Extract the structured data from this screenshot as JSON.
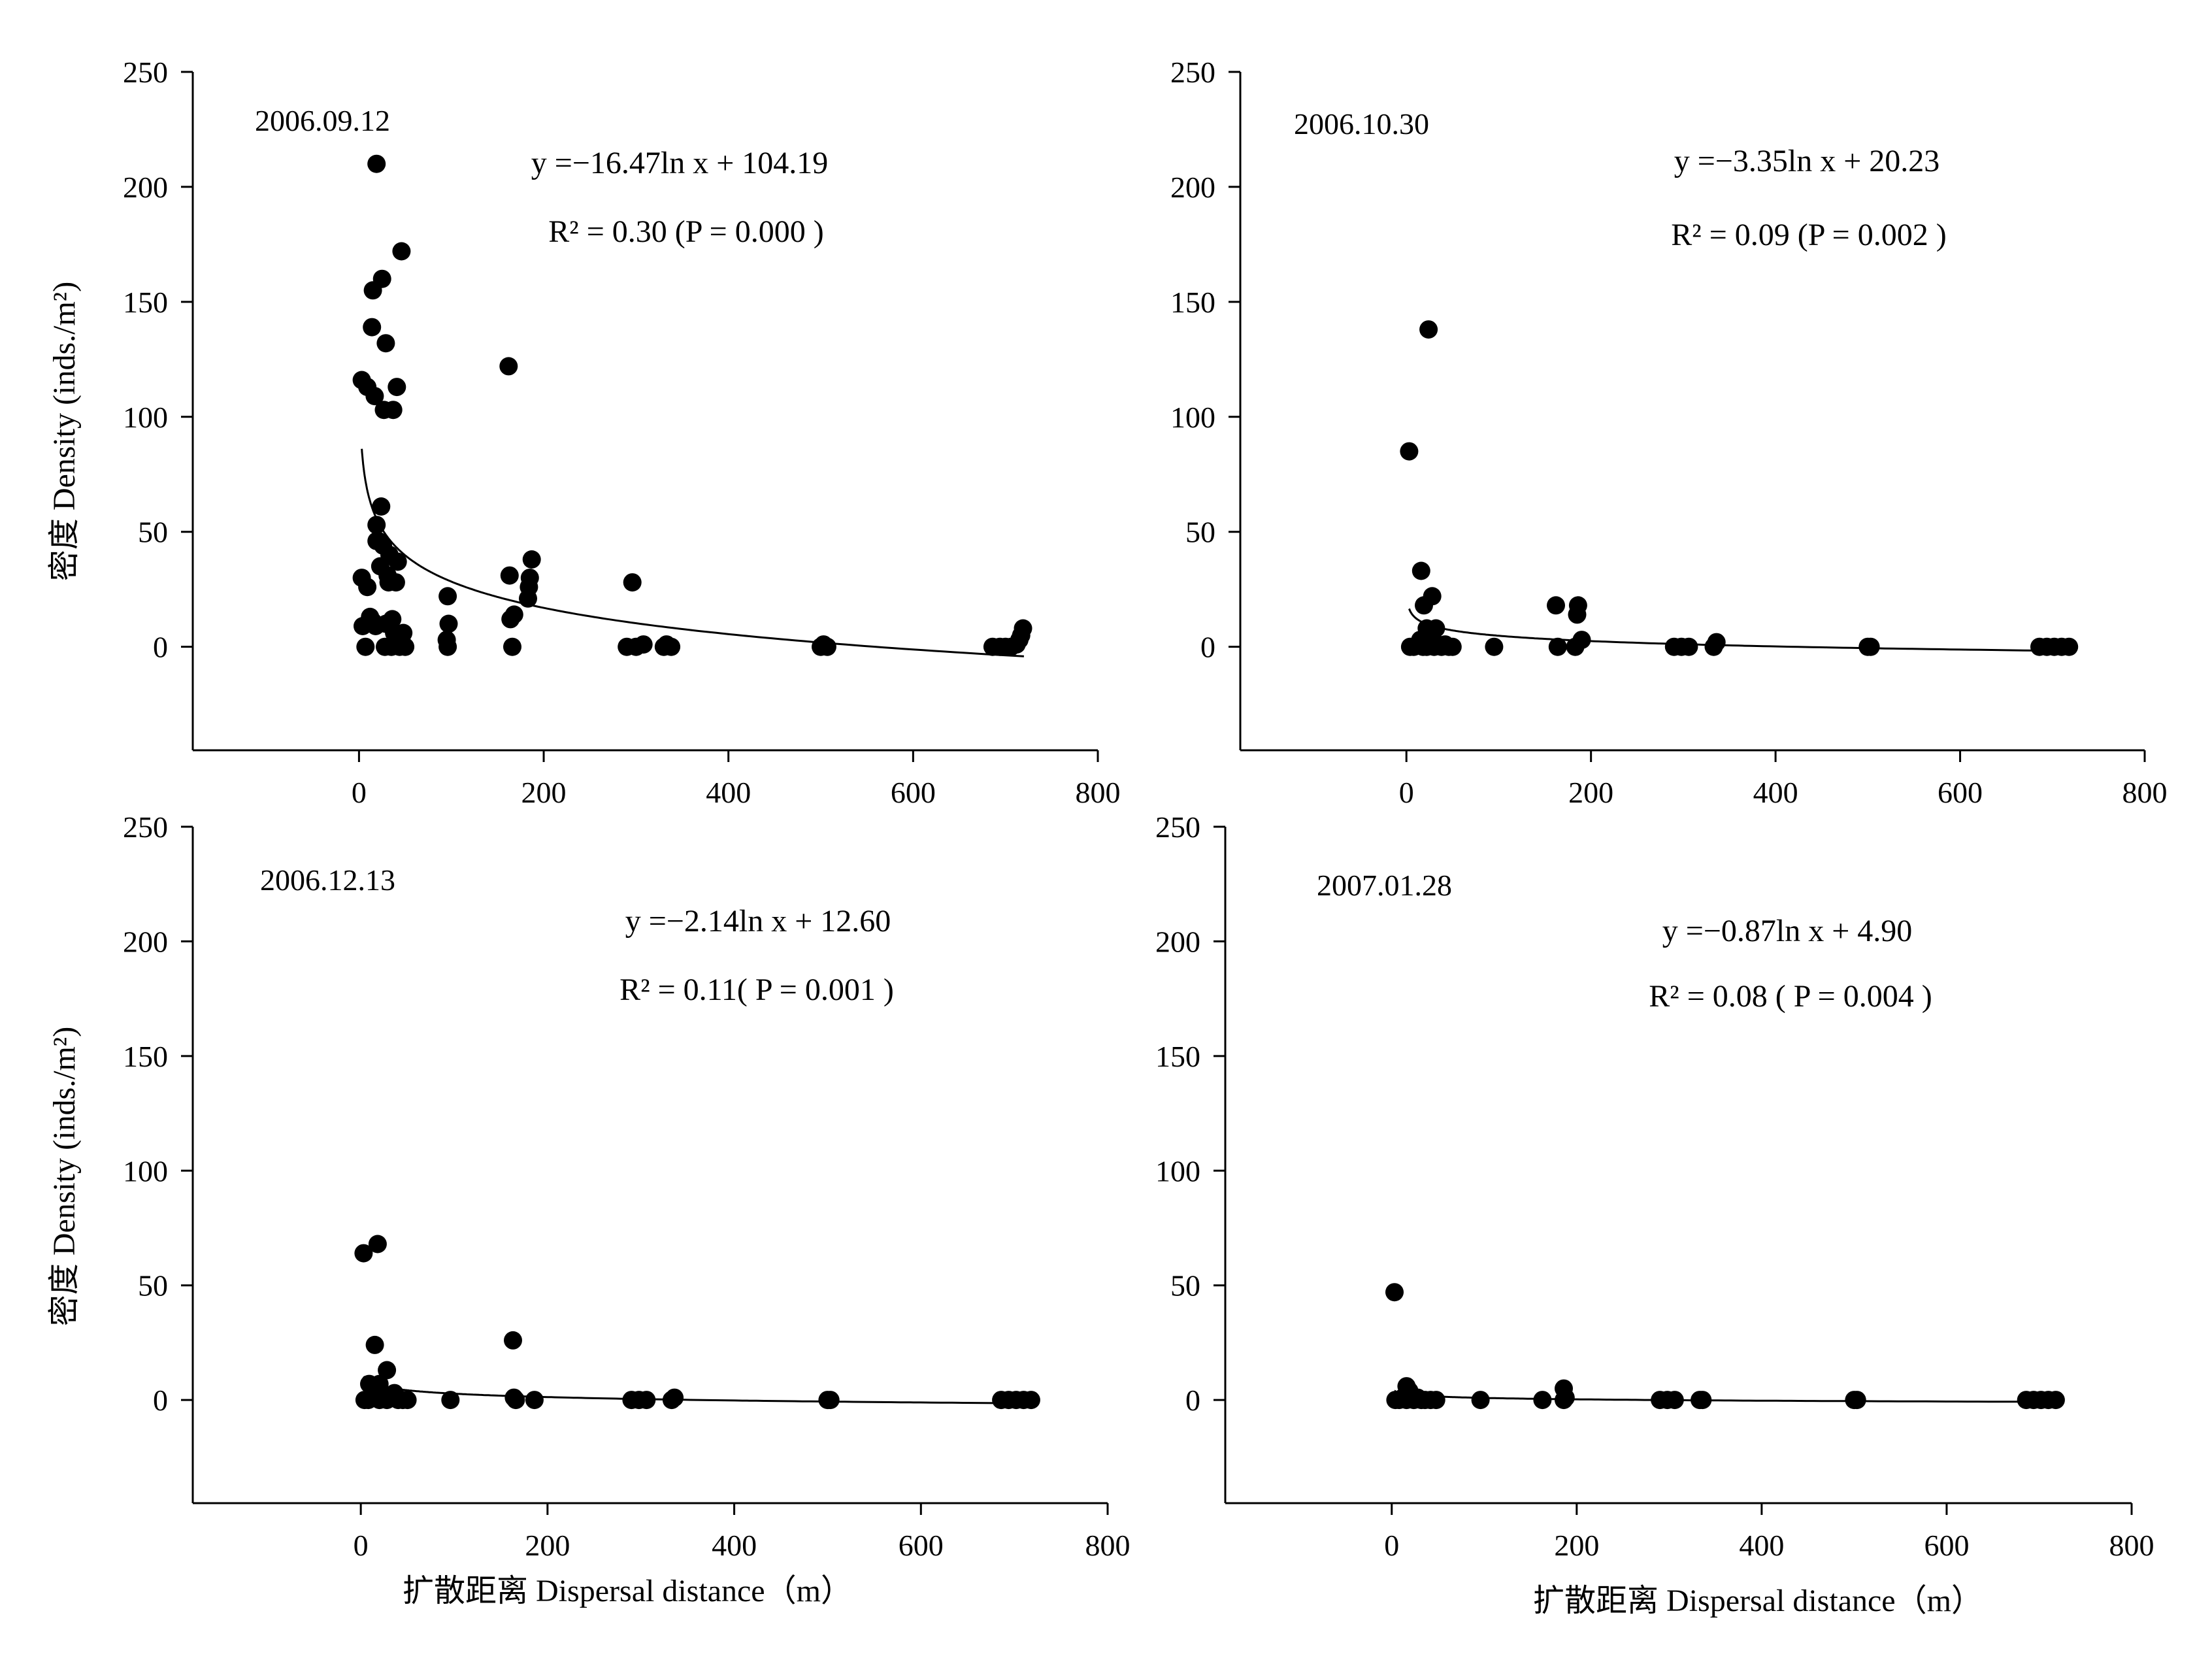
{
  "figure": {
    "y_axis_title": "密度  Density (inds./m²)",
    "x_axis_title": "扩散距离 Dispersal distance（m）"
  },
  "chart_data": [
    {
      "type": "scatter",
      "panel_label": "2006.09.12",
      "equation": "y =−16.47ln x + 104.19",
      "r2_text": "R² = 0.30 (P = 0.000 )",
      "fit": {
        "kind": "log",
        "a": -16.47,
        "b": 104.19
      },
      "xlim": [
        -180,
        800
      ],
      "ylim": [
        -45,
        250
      ],
      "xticks": [
        0,
        200,
        400,
        600,
        800
      ],
      "yticks": [
        0,
        50,
        100,
        150,
        200,
        250
      ],
      "points": [
        [
          3,
          116
        ],
        [
          9,
          113
        ],
        [
          14,
          139
        ],
        [
          15,
          155
        ],
        [
          17,
          109
        ],
        [
          19,
          210
        ],
        [
          25,
          160
        ],
        [
          27,
          103
        ],
        [
          29,
          132
        ],
        [
          37,
          103
        ],
        [
          41,
          113
        ],
        [
          46,
          172
        ],
        [
          3,
          30
        ],
        [
          4,
          9
        ],
        [
          7,
          0
        ],
        [
          9,
          26
        ],
        [
          12,
          13
        ],
        [
          15,
          11
        ],
        [
          18,
          9
        ],
        [
          19,
          53
        ],
        [
          19,
          46
        ],
        [
          21,
          46
        ],
        [
          23,
          35
        ],
        [
          24,
          61
        ],
        [
          26,
          44
        ],
        [
          28,
          0
        ],
        [
          29,
          10
        ],
        [
          31,
          31
        ],
        [
          32,
          28
        ],
        [
          33,
          40
        ],
        [
          35,
          0
        ],
        [
          36,
          12
        ],
        [
          38,
          6
        ],
        [
          40,
          28
        ],
        [
          42,
          37
        ],
        [
          44,
          0
        ],
        [
          46,
          3
        ],
        [
          48,
          6
        ],
        [
          50,
          0
        ],
        [
          96,
          22
        ],
        [
          97,
          10
        ],
        [
          95,
          3
        ],
        [
          96,
          0
        ],
        [
          162,
          122
        ],
        [
          163,
          31
        ],
        [
          164,
          12
        ],
        [
          166,
          0
        ],
        [
          168,
          14
        ],
        [
          187,
          38
        ],
        [
          185,
          30
        ],
        [
          184,
          26
        ],
        [
          183,
          21
        ],
        [
          296,
          28
        ],
        [
          290,
          0
        ],
        [
          300,
          0
        ],
        [
          308,
          1
        ],
        [
          330,
          0
        ],
        [
          333,
          1
        ],
        [
          338,
          0
        ],
        [
          500,
          0
        ],
        [
          503,
          1
        ],
        [
          507,
          0
        ],
        [
          686,
          0
        ],
        [
          694,
          0
        ],
        [
          700,
          0
        ],
        [
          706,
          0
        ],
        [
          712,
          1
        ],
        [
          715,
          3
        ],
        [
          717,
          5
        ],
        [
          719,
          8
        ]
      ]
    },
    {
      "type": "scatter",
      "panel_label": "2006.10.30",
      "equation": "y =−3.35ln x + 20.23",
      "r2_text": "R² = 0.09 (P = 0.002 )",
      "fit": {
        "kind": "log",
        "a": -3.35,
        "b": 20.23
      },
      "xlim": [
        -180,
        800
      ],
      "ylim": [
        -45,
        250
      ],
      "xticks": [
        0,
        200,
        400,
        600,
        800
      ],
      "yticks": [
        0,
        50,
        100,
        150,
        200,
        250
      ],
      "points": [
        [
          3,
          85
        ],
        [
          24,
          138
        ],
        [
          16,
          33
        ],
        [
          19,
          18
        ],
        [
          28,
          22
        ],
        [
          32,
          8
        ],
        [
          22,
          8
        ],
        [
          4,
          0
        ],
        [
          8,
          0
        ],
        [
          12,
          1
        ],
        [
          15,
          3
        ],
        [
          18,
          0
        ],
        [
          22,
          0
        ],
        [
          26,
          2
        ],
        [
          30,
          0
        ],
        [
          34,
          1
        ],
        [
          38,
          0
        ],
        [
          42,
          1
        ],
        [
          46,
          0
        ],
        [
          50,
          0
        ],
        [
          95,
          0
        ],
        [
          162,
          18
        ],
        [
          164,
          0
        ],
        [
          186,
          18
        ],
        [
          185,
          14
        ],
        [
          190,
          3
        ],
        [
          183,
          0
        ],
        [
          290,
          0
        ],
        [
          298,
          0
        ],
        [
          306,
          0
        ],
        [
          333,
          0
        ],
        [
          336,
          2
        ],
        [
          500,
          0
        ],
        [
          503,
          0
        ],
        [
          686,
          0
        ],
        [
          694,
          0
        ],
        [
          702,
          0
        ],
        [
          710,
          0
        ],
        [
          718,
          0
        ]
      ]
    },
    {
      "type": "scatter",
      "panel_label": "2006.12.13",
      "equation": "y =−2.14ln x + 12.60",
      "r2_text": "R² = 0.11( P = 0.001 )",
      "fit": {
        "kind": "log",
        "a": -2.14,
        "b": 12.6
      },
      "xlim": [
        -180,
        800
      ],
      "ylim": [
        -45,
        250
      ],
      "xticks": [
        0,
        200,
        400,
        600,
        800
      ],
      "yticks": [
        0,
        50,
        100,
        150,
        200,
        250
      ],
      "points": [
        [
          3,
          64
        ],
        [
          18,
          68
        ],
        [
          15,
          24
        ],
        [
          28,
          13
        ],
        [
          9,
          7
        ],
        [
          20,
          7
        ],
        [
          4,
          0
        ],
        [
          8,
          0
        ],
        [
          12,
          1
        ],
        [
          16,
          3
        ],
        [
          20,
          0
        ],
        [
          24,
          2
        ],
        [
          28,
          0
        ],
        [
          32,
          1
        ],
        [
          36,
          3
        ],
        [
          40,
          0
        ],
        [
          45,
          0
        ],
        [
          50,
          0
        ],
        [
          96,
          0
        ],
        [
          163,
          26
        ],
        [
          164,
          1
        ],
        [
          166,
          0
        ],
        [
          186,
          0
        ],
        [
          290,
          0
        ],
        [
          298,
          0
        ],
        [
          306,
          0
        ],
        [
          333,
          0
        ],
        [
          336,
          1
        ],
        [
          500,
          0
        ],
        [
          503,
          0
        ],
        [
          686,
          0
        ],
        [
          694,
          0
        ],
        [
          702,
          0
        ],
        [
          710,
          0
        ],
        [
          718,
          0
        ]
      ]
    },
    {
      "type": "scatter",
      "panel_label": "2007.01.28",
      "equation": "y =−0.87ln x + 4.90",
      "r2_text": "R² = 0.08 ( P = 0.004 )",
      "fit": {
        "kind": "log",
        "a": -0.87,
        "b": 4.9
      },
      "xlim": [
        -180,
        800
      ],
      "ylim": [
        -45,
        250
      ],
      "xticks": [
        0,
        200,
        400,
        600,
        800
      ],
      "yticks": [
        0,
        50,
        100,
        150,
        200,
        250
      ],
      "points": [
        [
          3,
          47
        ],
        [
          16,
          6
        ],
        [
          19,
          4
        ],
        [
          4,
          0
        ],
        [
          8,
          0
        ],
        [
          12,
          1
        ],
        [
          16,
          0
        ],
        [
          20,
          2
        ],
        [
          24,
          0
        ],
        [
          28,
          1
        ],
        [
          32,
          0
        ],
        [
          36,
          0
        ],
        [
          42,
          0
        ],
        [
          48,
          0
        ],
        [
          96,
          0
        ],
        [
          163,
          0
        ],
        [
          186,
          5
        ],
        [
          188,
          1
        ],
        [
          186,
          0
        ],
        [
          290,
          0
        ],
        [
          298,
          0
        ],
        [
          306,
          0
        ],
        [
          333,
          0
        ],
        [
          336,
          0
        ],
        [
          500,
          0
        ],
        [
          503,
          0
        ],
        [
          686,
          0
        ],
        [
          694,
          0
        ],
        [
          702,
          0
        ],
        [
          710,
          0
        ],
        [
          718,
          0
        ]
      ]
    }
  ]
}
